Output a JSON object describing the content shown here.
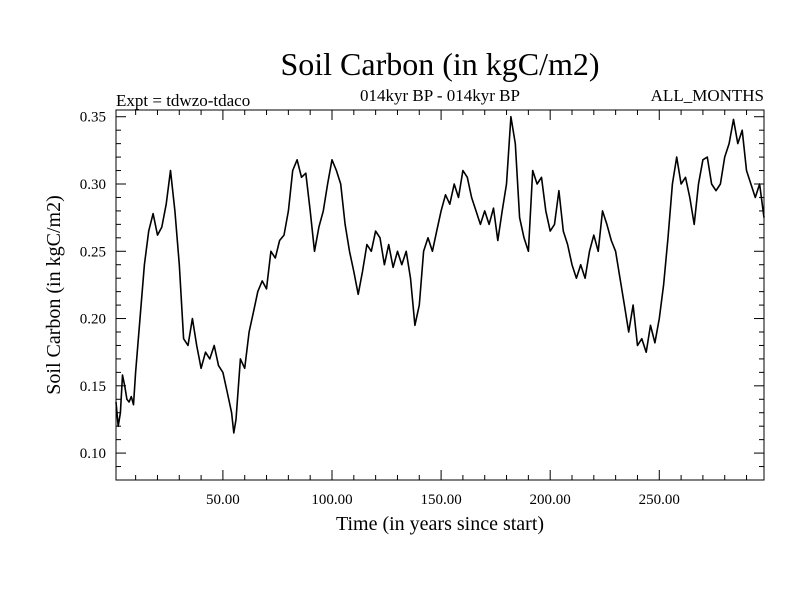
{
  "chart_data": {
    "type": "line",
    "title": "Soil Carbon (in kgC/m2)",
    "subtitle_left": "Expt = tdwzo-tdaco",
    "subtitle_center": "014kyr BP - 014kyr BP",
    "subtitle_right": "ALL_MONTHS",
    "xlabel": "Time (in years since start)",
    "ylabel": "Soil Carbon (in kgC/m2)",
    "xlim": [
      1,
      298
    ],
    "ylim": [
      0.08,
      0.355
    ],
    "x_ticks": [
      50,
      100,
      150,
      200,
      250
    ],
    "x_tick_labels": [
      "50.00",
      "100.00",
      "150.00",
      "200.00",
      "250.00"
    ],
    "y_ticks": [
      0.1,
      0.15,
      0.2,
      0.25,
      0.3,
      0.35
    ],
    "y_tick_labels": [
      "0.10",
      "0.15",
      "0.20",
      "0.25",
      "0.30",
      "0.35"
    ],
    "grid": false,
    "legend": "none",
    "color": "#000000",
    "series": [
      {
        "x": [
          1,
          2,
          3,
          4,
          5,
          6,
          7,
          8,
          9,
          10,
          12,
          14,
          16,
          18,
          20,
          22,
          24,
          26,
          28,
          30,
          32,
          34,
          36,
          38,
          40,
          42,
          44,
          46,
          48,
          50,
          52,
          54,
          55,
          56,
          58,
          60,
          62,
          64,
          66,
          68,
          70,
          72,
          74,
          76,
          78,
          80,
          82,
          84,
          86,
          88,
          90,
          92,
          94,
          96,
          98,
          100,
          102,
          104,
          106,
          108,
          110,
          112,
          114,
          116,
          118,
          120,
          122,
          124,
          126,
          128,
          130,
          132,
          134,
          136,
          138,
          140,
          142,
          144,
          146,
          148,
          150,
          152,
          154,
          156,
          158,
          160,
          162,
          164,
          166,
          168,
          170,
          172,
          174,
          176,
          178,
          180,
          182,
          184,
          186,
          188,
          190,
          192,
          194,
          196,
          198,
          200,
          202,
          204,
          206,
          208,
          210,
          212,
          214,
          216,
          218,
          220,
          222,
          224,
          226,
          228,
          230,
          232,
          234,
          236,
          238,
          240,
          242,
          244,
          246,
          248,
          250,
          252,
          254,
          256,
          258,
          260,
          262,
          264,
          266,
          268,
          270,
          272,
          274,
          276,
          278,
          280,
          282,
          284,
          286,
          288,
          290,
          292,
          294,
          296,
          298
        ],
        "y": [
          0.138,
          0.12,
          0.13,
          0.158,
          0.15,
          0.14,
          0.138,
          0.142,
          0.136,
          0.16,
          0.2,
          0.24,
          0.265,
          0.278,
          0.262,
          0.268,
          0.285,
          0.31,
          0.28,
          0.24,
          0.185,
          0.18,
          0.2,
          0.18,
          0.163,
          0.175,
          0.17,
          0.18,
          0.165,
          0.16,
          0.145,
          0.13,
          0.115,
          0.125,
          0.17,
          0.163,
          0.19,
          0.205,
          0.22,
          0.228,
          0.222,
          0.25,
          0.245,
          0.258,
          0.262,
          0.28,
          0.31,
          0.318,
          0.305,
          0.308,
          0.28,
          0.25,
          0.268,
          0.28,
          0.3,
          0.318,
          0.31,
          0.3,
          0.27,
          0.25,
          0.235,
          0.218,
          0.235,
          0.255,
          0.25,
          0.265,
          0.26,
          0.24,
          0.255,
          0.238,
          0.25,
          0.24,
          0.25,
          0.23,
          0.195,
          0.21,
          0.25,
          0.26,
          0.25,
          0.265,
          0.28,
          0.292,
          0.285,
          0.3,
          0.29,
          0.31,
          0.305,
          0.29,
          0.28,
          0.27,
          0.28,
          0.27,
          0.282,
          0.258,
          0.28,
          0.3,
          0.35,
          0.33,
          0.275,
          0.26,
          0.25,
          0.31,
          0.3,
          0.305,
          0.28,
          0.265,
          0.27,
          0.295,
          0.265,
          0.255,
          0.24,
          0.23,
          0.24,
          0.23,
          0.25,
          0.262,
          0.25,
          0.28,
          0.27,
          0.258,
          0.25,
          0.23,
          0.21,
          0.19,
          0.21,
          0.18,
          0.185,
          0.175,
          0.195,
          0.182,
          0.2,
          0.225,
          0.26,
          0.3,
          0.32,
          0.3,
          0.305,
          0.29,
          0.27,
          0.3,
          0.318,
          0.32,
          0.3,
          0.295,
          0.3,
          0.32,
          0.33,
          0.348,
          0.33,
          0.34,
          0.31,
          0.3,
          0.29,
          0.3,
          0.275
        ]
      }
    ]
  }
}
